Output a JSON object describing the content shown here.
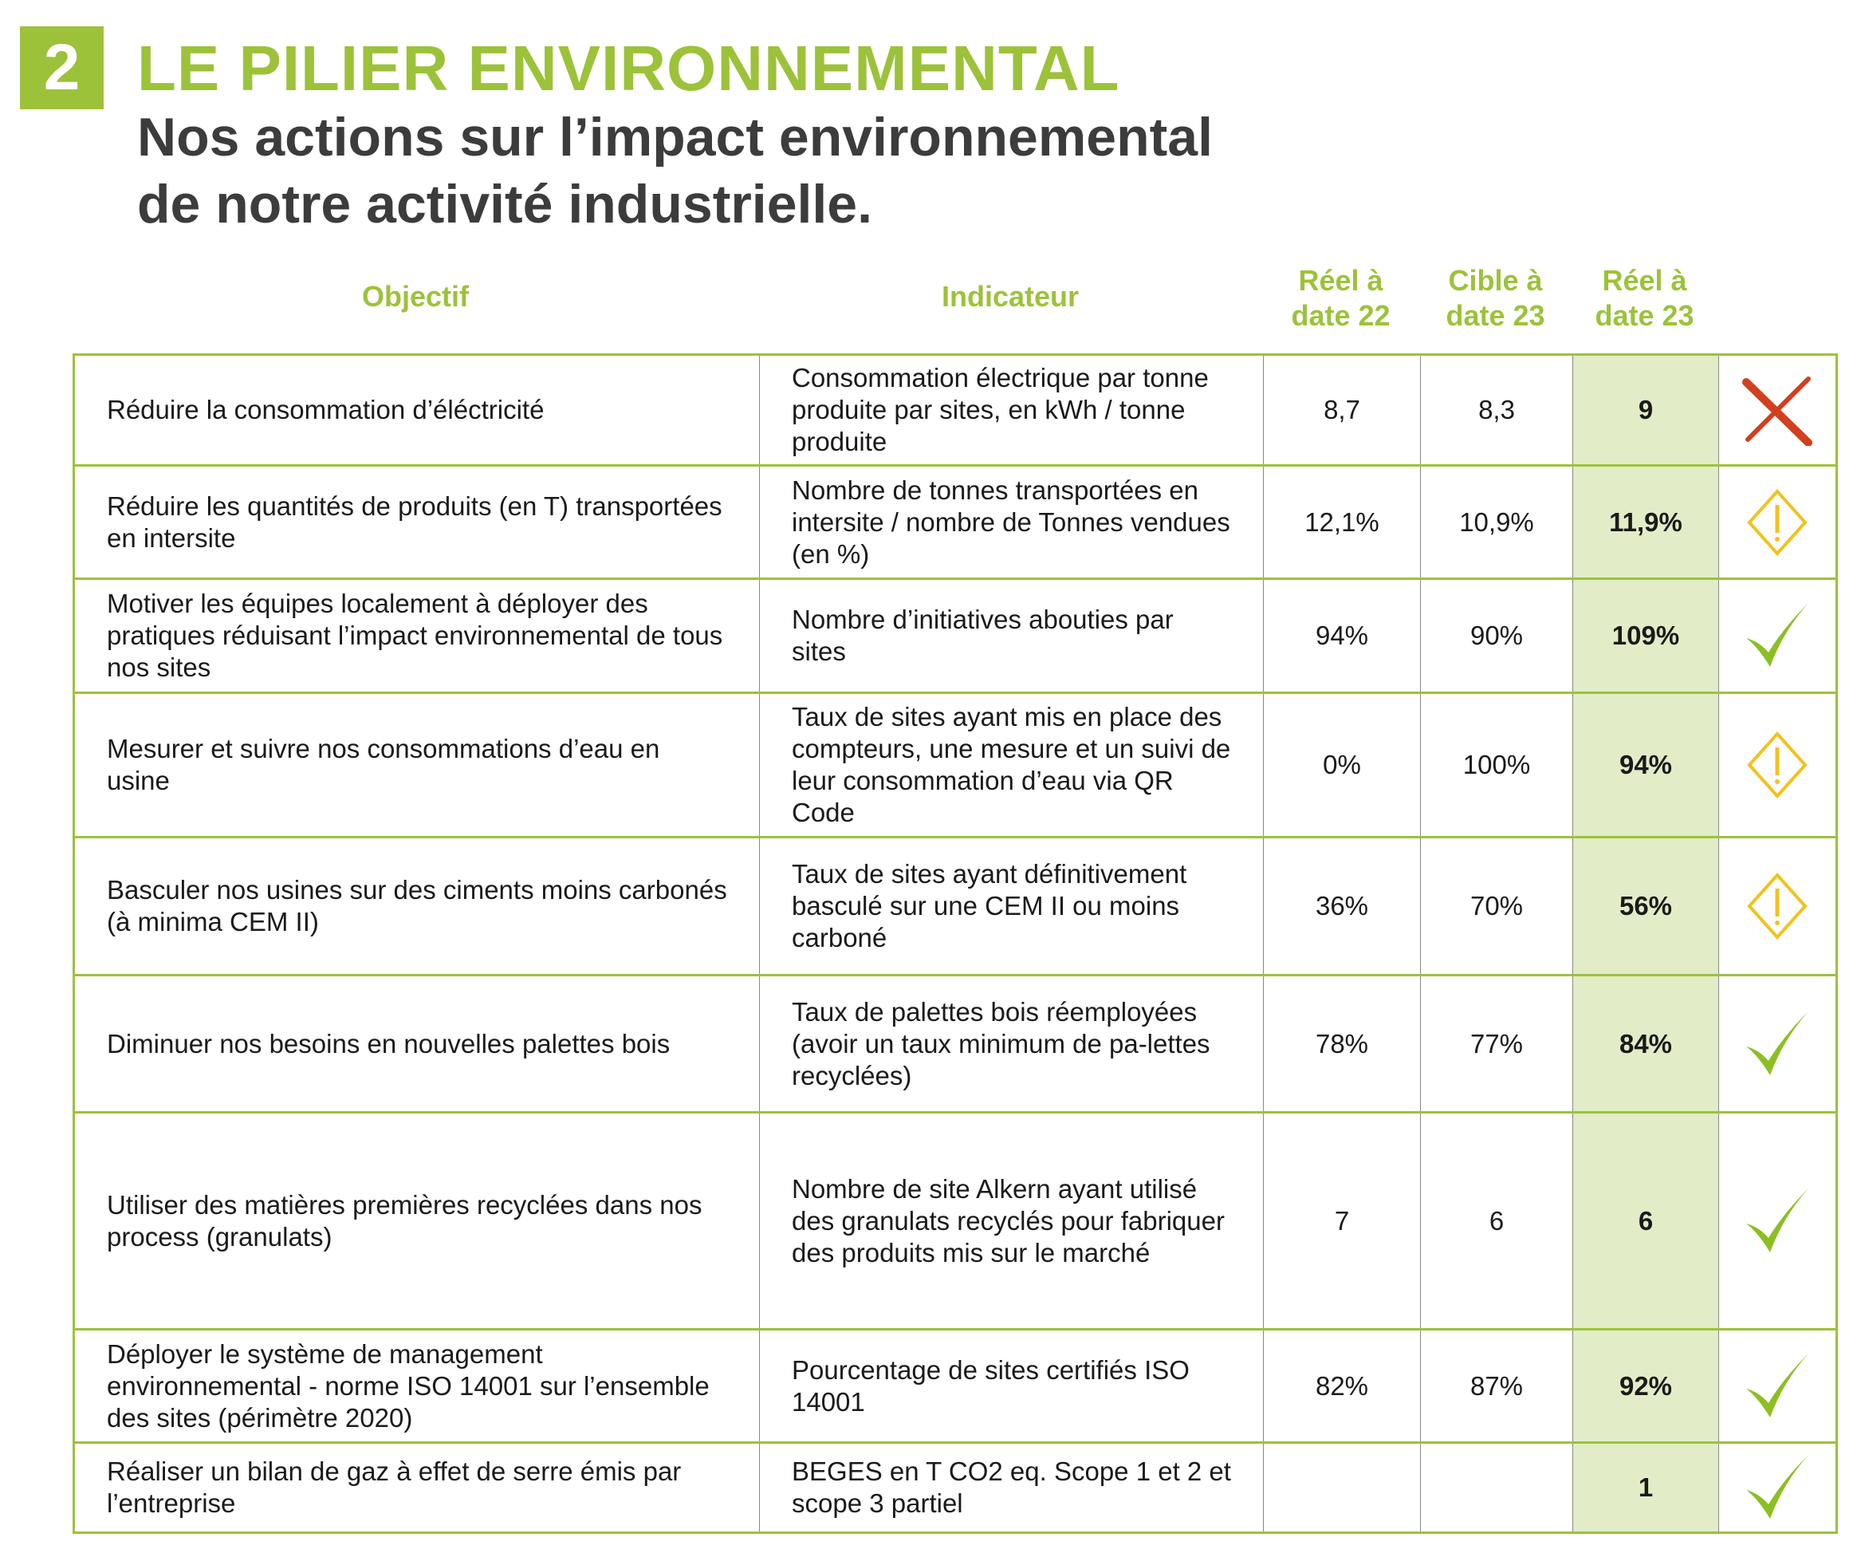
{
  "section_number": "2",
  "title": "LE PILIER ENVIRONNEMENTAL",
  "subtitle_line1": "Nos actions sur l’impact environnemental",
  "subtitle_line2": "de notre activité industrielle.",
  "colors": {
    "accent": "#9cc23a",
    "highlight": "#e2ecc6",
    "fail": "#d2401e",
    "warning": "#f2c21b",
    "success": "#8bbf22"
  },
  "headers": {
    "objectif": "Objectif",
    "indicateur": "Indicateur",
    "reel22_l1": "Réel à",
    "reel22_l2": "date 22",
    "cible23_l1": "Cible à",
    "cible23_l2": "date 23",
    "reel23_l1": "Réel à",
    "reel23_l2": "date 23"
  },
  "rows": [
    {
      "objectif": "Réduire la consommation d’éléctricité",
      "indicateur": "Consommation électrique par tonne produite par sites, en kWh / tonne produite",
      "reel22": "8,7",
      "cible23": "8,3",
      "reel23": "9",
      "status": "cross-icon"
    },
    {
      "objectif": "Réduire les quantités de produits (en T) transportées en intersite",
      "indicateur": "Nombre de tonnes transportées en intersite / nombre de Tonnes vendues (en %)",
      "reel22": "12,1%",
      "cible23": "10,9%",
      "reel23": "11,9%",
      "status": "warning-icon"
    },
    {
      "objectif": "Motiver les équipes localement à déployer des pratiques réduisant l’impact environnemental de tous nos sites",
      "indicateur": "Nombre d’initiatives abouties par sites",
      "reel22": "94%",
      "cible23": "90%",
      "reel23": "109%",
      "status": "check-icon"
    },
    {
      "objectif": "Mesurer et suivre nos consommations d’eau en usine",
      "indicateur": "Taux de sites ayant mis en place des compteurs, une mesure et un suivi de leur consommation d’eau via QR Code",
      "reel22": "0%",
      "cible23": "100%",
      "reel23": "94%",
      "status": "warning-icon"
    },
    {
      "objectif": "Basculer nos usines sur des ciments moins carbonés (à minima CEM II)",
      "indicateur": "Taux de sites ayant définitivement basculé sur une CEM II ou moins carboné",
      "reel22": "36%",
      "cible23": "70%",
      "reel23": "56%",
      "status": "warning-icon"
    },
    {
      "objectif": "Diminuer nos besoins en nouvelles palettes bois",
      "indicateur": "Taux de palettes bois réemployées (avoir un taux minimum de pa-lettes recyclées)",
      "reel22": "78%",
      "cible23": "77%",
      "reel23": "84%",
      "status": "check-icon"
    },
    {
      "objectif": "Utiliser des matières premières recyclées dans nos process (granulats)",
      "indicateur": "Nombre de site Alkern ayant utilisé des granulats recyclés pour fabriquer des produits mis sur le marché",
      "reel22": "7",
      "cible23": "6",
      "reel23": "6",
      "status": "check-icon"
    },
    {
      "objectif": "Déployer le système de management environnemental - norme ISO 14001 sur l’ensemble des sites (périmètre 2020)",
      "indicateur": "Pourcentage de sites certifiés ISO 14001",
      "reel22": "82%",
      "cible23": "87%",
      "reel23": "92%",
      "status": "check-icon"
    },
    {
      "objectif": "Réaliser un bilan de gaz à effet de serre émis par l’entreprise",
      "indicateur": "BEGES  en T CO2 eq. Scope 1 et 2 et scope 3 partiel",
      "reel22": "",
      "cible23": "",
      "reel23": "1",
      "status": "check-icon"
    }
  ]
}
